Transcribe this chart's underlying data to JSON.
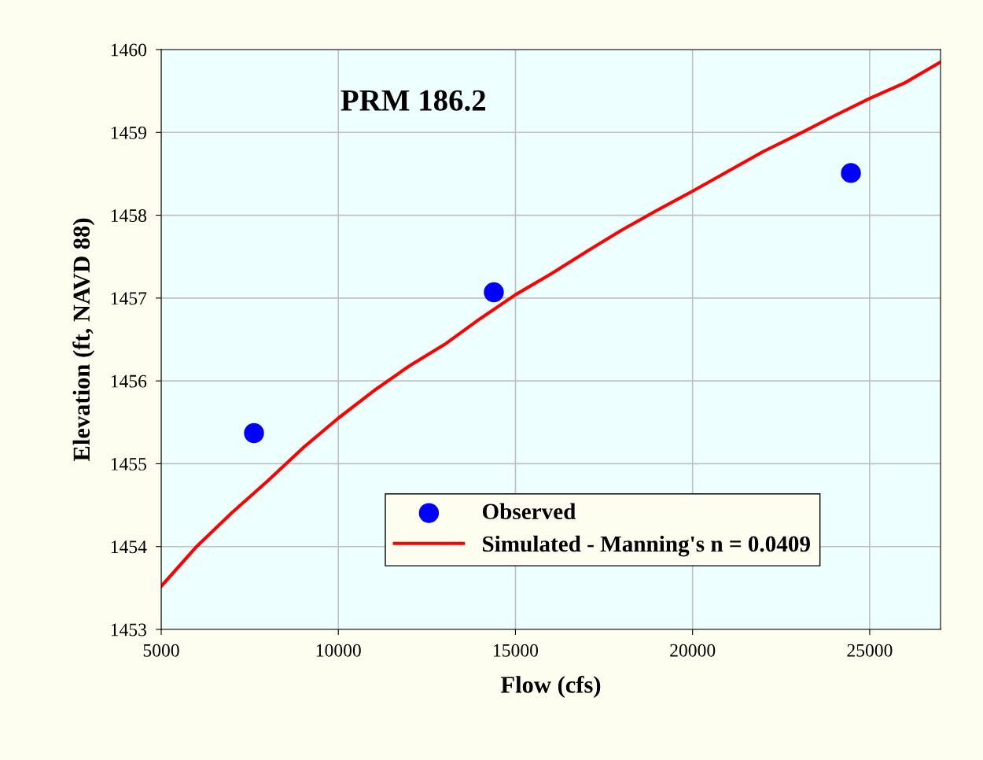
{
  "chart_data": {
    "type": "line",
    "xlabel": "Flow (cfs)",
    "ylabel": "Elevation (ft, NAVD 88)",
    "annotations": [
      "PRM 186.2"
    ],
    "xlim": [
      5000,
      27000
    ],
    "xticks": [
      5000,
      10000,
      15000,
      20000,
      25000
    ],
    "ylim": [
      1453,
      1460
    ],
    "yticks": [
      1453,
      1454,
      1455,
      1456,
      1457,
      1458,
      1459,
      1460
    ],
    "grid": true,
    "legend": "bottom right",
    "series": [
      {
        "name": "Observed",
        "type": "scatter",
        "marker": "circle",
        "color": "#0000ff",
        "x": [
          7620,
          14390,
          24470
        ],
        "values": [
          1455.37,
          1457.07,
          1458.51
        ]
      },
      {
        "name": "Simulated - Manning's n = 0.0409",
        "color": "#ff0000",
        "x": [
          5000,
          6000,
          7000,
          8000,
          9000,
          10000,
          11000,
          12000,
          13000,
          14000,
          15000,
          16000,
          17000,
          18000,
          19000,
          20000,
          21000,
          22000,
          23000,
          24000,
          25000,
          26000,
          27000
        ],
        "values": [
          1453.52,
          1454.0,
          1454.41,
          1454.79,
          1455.19,
          1455.55,
          1455.88,
          1456.18,
          1456.44,
          1456.75,
          1457.04,
          1457.29,
          1457.56,
          1457.82,
          1458.06,
          1458.29,
          1458.53,
          1458.77,
          1458.98,
          1459.2,
          1459.41,
          1459.6,
          1459.85
        ]
      }
    ]
  }
}
